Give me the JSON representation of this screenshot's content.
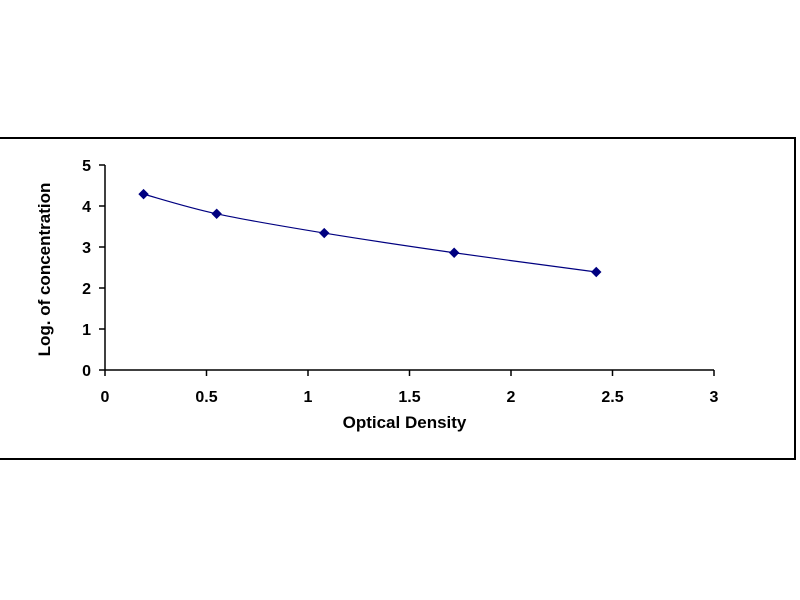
{
  "chart_data": {
    "type": "scatter",
    "title": "",
    "xlabel": "Optical Density",
    "ylabel": "Log. of concentration",
    "xlim": [
      0,
      3
    ],
    "ylim": [
      0,
      5
    ],
    "x_ticks": [
      "0",
      "0.5",
      "1",
      "1.5",
      "2",
      "2.5",
      "3"
    ],
    "y_ticks": [
      "0",
      "1",
      "2",
      "3",
      "4",
      "5"
    ],
    "grid": false,
    "legend": "none",
    "series": [
      {
        "x": [
          0.19,
          0.55,
          1.08,
          1.72,
          2.42
        ],
        "y": [
          4.29,
          3.81,
          3.34,
          2.86,
          2.39
        ],
        "marker": "diamond",
        "line": "smooth",
        "color": "#000080"
      }
    ]
  }
}
